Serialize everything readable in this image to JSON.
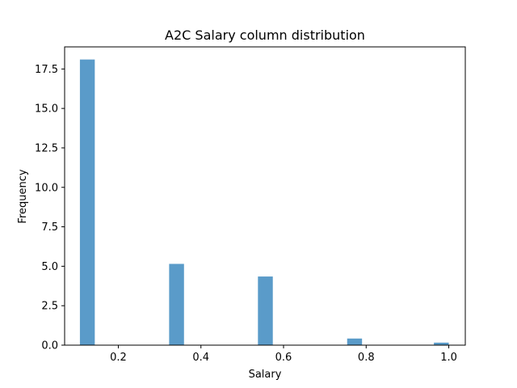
{
  "chart_data": {
    "type": "bar",
    "title": "A2C Salary column distribution",
    "xlabel": "Salary",
    "ylabel": "Frequency",
    "xlim": [
      0.07,
      1.04
    ],
    "ylim": [
      0,
      18.9
    ],
    "bar_width": 0.036,
    "color": "#5a9bc9",
    "bins": [
      {
        "x": 0.125,
        "value": 18.1
      },
      {
        "x": 0.341,
        "value": 5.15
      },
      {
        "x": 0.556,
        "value": 4.35
      },
      {
        "x": 0.772,
        "value": 0.42
      },
      {
        "x": 0.982,
        "value": 0.16
      }
    ],
    "x_ticks": [
      0.2,
      0.4,
      0.6,
      0.8,
      1.0
    ],
    "x_tick_labels": [
      "0.2",
      "0.4",
      "0.6",
      "0.8",
      "1.0"
    ],
    "y_ticks": [
      0,
      2.5,
      5.0,
      7.5,
      10.0,
      12.5,
      15.0,
      17.5
    ],
    "y_tick_labels": [
      "0.0",
      "2.5",
      "5.0",
      "7.5",
      "10.0",
      "12.5",
      "15.0",
      "17.5"
    ],
    "grid": false,
    "legend": false
  }
}
